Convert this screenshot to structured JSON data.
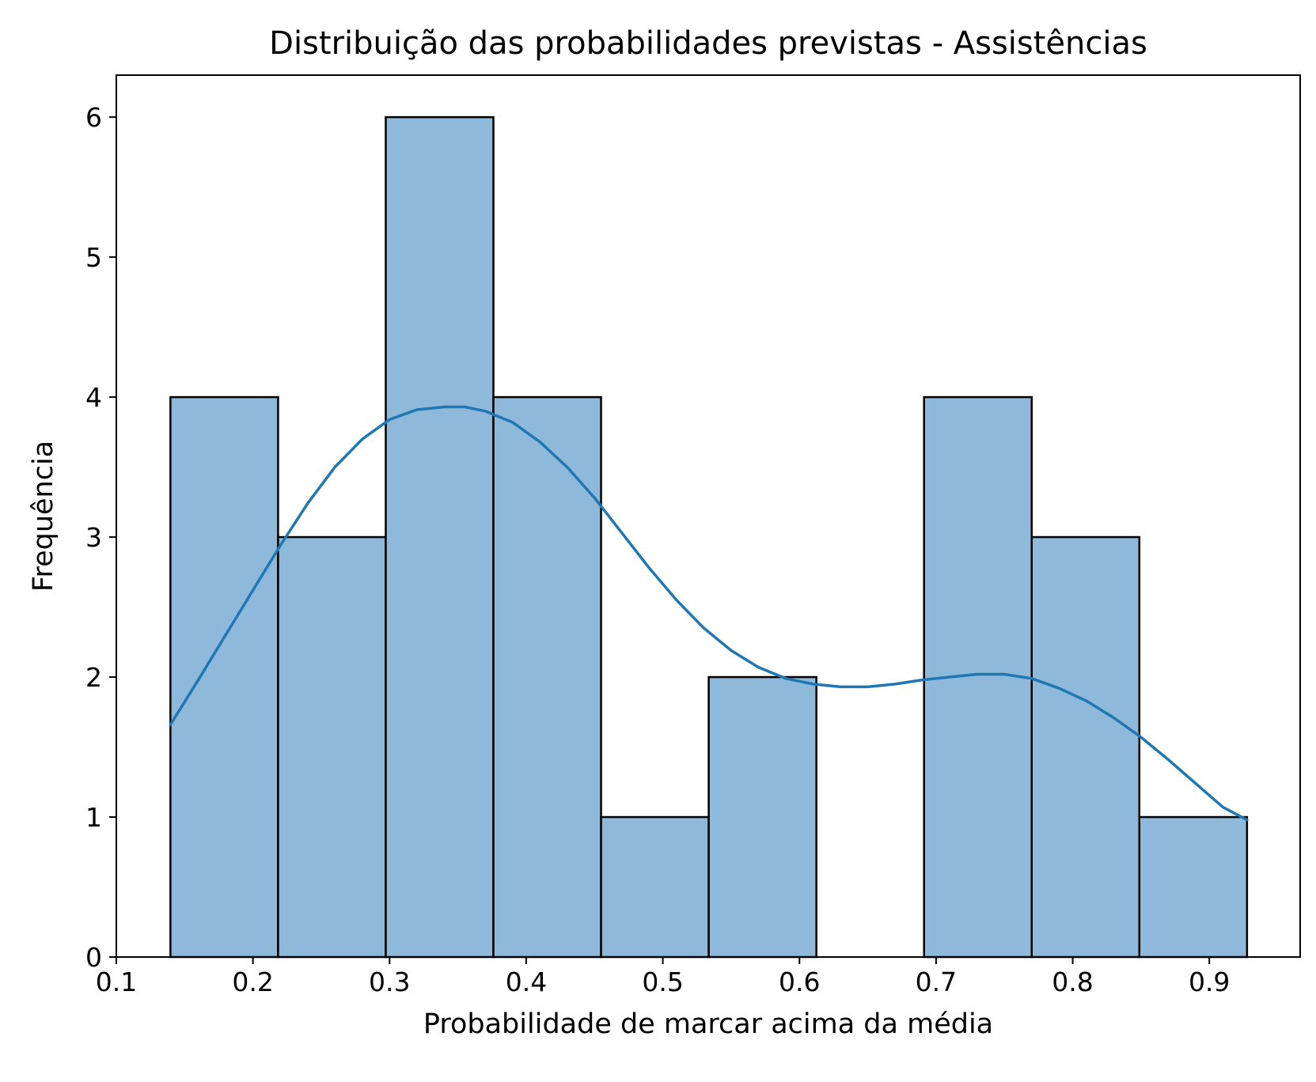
{
  "chart_data": {
    "type": "bar",
    "subtype": "histogram-with-kde",
    "title": "Distribuição das probabilidades previstas - Assistências",
    "xlabel": "Probabilidade de marcar acima da média",
    "ylabel": "Frequência",
    "xlim": [
      0.1,
      0.9665
    ],
    "ylim": [
      0,
      6.3
    ],
    "xticks": [
      "0.1",
      "0.2",
      "0.3",
      "0.4",
      "0.5",
      "0.6",
      "0.7",
      "0.8",
      "0.9"
    ],
    "yticks": [
      "0",
      "1",
      "2",
      "3",
      "4",
      "5",
      "6"
    ],
    "bin_edges": [
      0.1396,
      0.2184,
      0.2972,
      0.376,
      0.4548,
      0.5336,
      0.6124,
      0.6912,
      0.77,
      0.8488,
      0.9276
    ],
    "values": [
      4,
      3,
      6,
      4,
      1,
      2,
      0,
      4,
      3,
      1
    ],
    "kde": {
      "x": [
        0.1396,
        0.16,
        0.18,
        0.2,
        0.22,
        0.24,
        0.26,
        0.28,
        0.3,
        0.32,
        0.34,
        0.355,
        0.37,
        0.39,
        0.41,
        0.43,
        0.45,
        0.47,
        0.49,
        0.51,
        0.53,
        0.55,
        0.57,
        0.59,
        0.61,
        0.63,
        0.65,
        0.67,
        0.69,
        0.71,
        0.73,
        0.75,
        0.77,
        0.79,
        0.81,
        0.83,
        0.85,
        0.87,
        0.89,
        0.91,
        0.9276
      ],
      "y": [
        1.66,
        1.98,
        2.3,
        2.62,
        2.94,
        3.24,
        3.5,
        3.7,
        3.84,
        3.91,
        3.93,
        3.93,
        3.9,
        3.82,
        3.68,
        3.5,
        3.28,
        3.03,
        2.78,
        2.55,
        2.35,
        2.19,
        2.07,
        1.99,
        1.95,
        1.93,
        1.93,
        1.95,
        1.98,
        2.0,
        2.02,
        2.02,
        1.99,
        1.92,
        1.83,
        1.71,
        1.57,
        1.41,
        1.24,
        1.07,
        0.98
      ]
    },
    "colors": {
      "bar_fill": "#8fb9da",
      "bar_edge": "#000000",
      "kde_line": "#1f77b4"
    },
    "grid": false,
    "legend": "none"
  }
}
